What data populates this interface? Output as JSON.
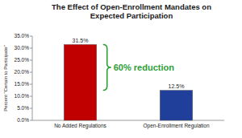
{
  "chart_data": {
    "type": "bar",
    "title": "The Effect of Open-Enrollment Mandates on Expected Participation",
    "y_label": "Percent \"Certain to Participate\"",
    "categories": [
      "No Added Regulations",
      "Open-Enrollment Regulation"
    ],
    "values": [
      31.5,
      12.5
    ],
    "value_labels": [
      "31.5%",
      "12.5%"
    ],
    "colors": [
      "#c00000",
      "#1f3f9a"
    ],
    "data_labels": true,
    "grid": false,
    "ylim": [
      0,
      35
    ],
    "yticks": [
      {
        "value": 0,
        "label": "0.0%"
      },
      {
        "value": 5,
        "label": "5.0%"
      },
      {
        "value": 10,
        "label": "10.0%"
      },
      {
        "value": 15,
        "label": "15.0%"
      },
      {
        "value": 20,
        "label": "20.0%"
      },
      {
        "value": 25,
        "label": "25.0%"
      },
      {
        "value": 30,
        "label": "30.0%"
      },
      {
        "value": 35,
        "label": "35.0%"
      }
    ],
    "annotation": {
      "text": "60% reduction",
      "color": "#2e9e3a"
    }
  }
}
